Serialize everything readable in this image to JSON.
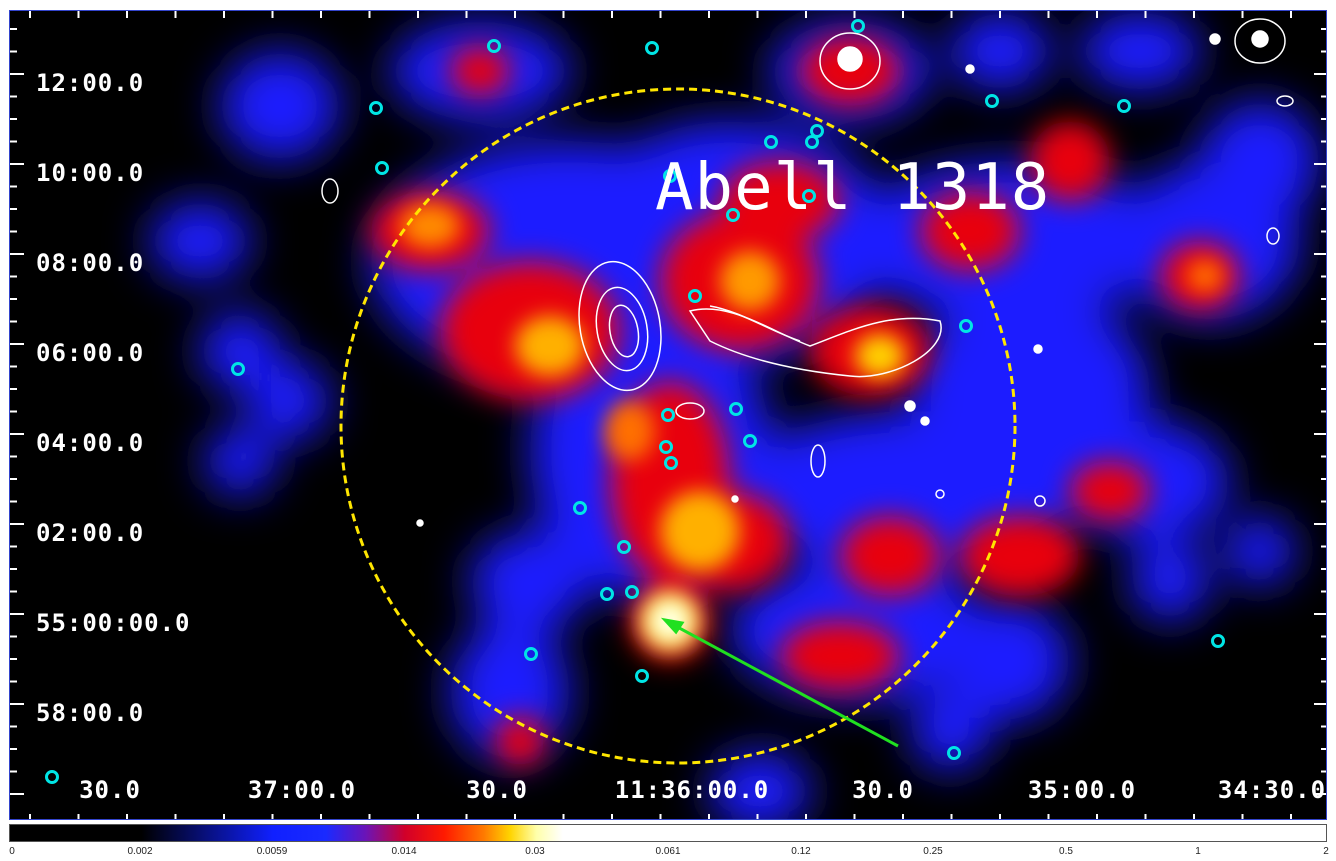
{
  "title": "Abell 1318",
  "y_labels": [
    "12:00.0",
    "10:00.0",
    "08:00.0",
    "06:00.0",
    "04:00.0",
    "02:00.0",
    "55:00:00.0",
    "58:00.0"
  ],
  "x_labels": [
    "30.0",
    "37:00.0",
    "30.0",
    "11:36:00.0",
    "30.0",
    "35:00.0",
    "34:30.0"
  ],
  "colorbar_ticks": [
    "0",
    "0.002",
    "0.0059",
    "0.014",
    "0.03",
    "0.061",
    "0.12",
    "0.25",
    "0.5",
    "1",
    "2"
  ],
  "colors": {
    "circle": "#ffe600",
    "marker": "#00e5e5",
    "arrow": "#20e020",
    "contour": "#ffffff"
  }
}
